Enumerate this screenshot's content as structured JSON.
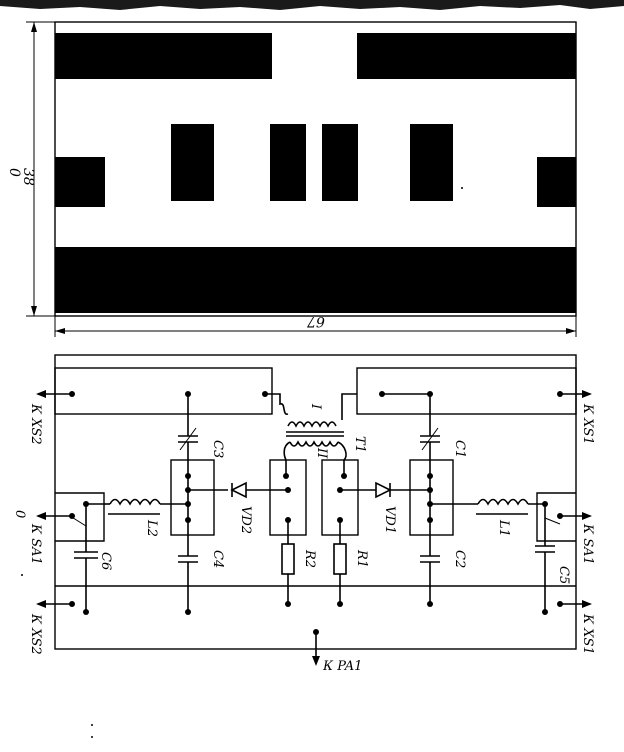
{
  "colors": {
    "ink": "#000000",
    "paper": "#ffffff"
  },
  "pcb_top": {
    "dim_width": "67",
    "dim_height": "38",
    "dim_symbol": "0"
  },
  "schematic": {
    "connectors": {
      "xs2_top": "К XS2",
      "xs1_top": "К XS1",
      "sa1_left": "К SA1",
      "sa1_right": "К SA1",
      "xs2_bottom": "К XS2",
      "xs1_bottom": "К XS1",
      "pa1": "К PA1",
      "left_zero": "0"
    },
    "components": {
      "c1": "C1",
      "c2": "C2",
      "c3": "C3",
      "c4": "C4",
      "c5": "C5",
      "c6": "C6",
      "l1": "L1",
      "l2": "L2",
      "r1": "R1",
      "r2": "R2",
      "vd1": "VD1",
      "vd2": "VD2",
      "t1": "T1",
      "winding_1": "I",
      "winding_2": "II"
    }
  }
}
